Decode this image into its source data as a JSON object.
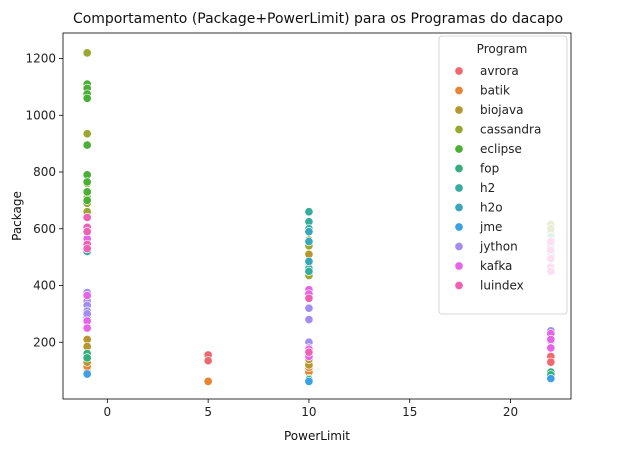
{
  "chart_data": {
    "type": "scatter",
    "title": "Comportamento (Package+PowerLimit) para os Programas do dacapo",
    "xlabel": "PowerLimit",
    "ylabel": "Package",
    "xlim": [
      -2.2,
      23.0
    ],
    "ylim": [
      0,
      1290
    ],
    "xticks": [
      0,
      5,
      10,
      15,
      20
    ],
    "yticks": [
      200,
      400,
      600,
      800,
      1000,
      1200
    ],
    "grid": false,
    "legend": {
      "title": "Program",
      "placement": "top-right"
    },
    "series": [
      {
        "name": " avrora",
        "color": "#f0686f",
        "points": [
          [
            -1,
            105
          ],
          [
            -1,
            125
          ],
          [
            -1,
            150
          ],
          [
            5,
            155
          ],
          [
            5,
            135
          ],
          [
            10,
            150
          ],
          [
            10,
            130
          ],
          [
            22,
            150
          ],
          [
            22,
            130
          ]
        ]
      },
      {
        "name": " batik",
        "color": "#e68431",
        "points": [
          [
            -1,
            95
          ],
          [
            -1,
            115
          ],
          [
            5,
            62
          ],
          [
            10,
            95
          ],
          [
            10,
            112
          ],
          [
            22,
            95
          ],
          [
            22,
            85
          ]
        ]
      },
      {
        "name": " biojava",
        "color": "#b8962f",
        "points": [
          [
            -1,
            255
          ],
          [
            -1,
            210
          ],
          [
            -1,
            185
          ],
          [
            -1,
            130
          ],
          [
            10,
            120
          ],
          [
            10,
            140
          ],
          [
            10,
            510
          ],
          [
            10,
            480
          ],
          [
            22,
            610
          ],
          [
            22,
            590
          ]
        ]
      },
      {
        "name": " cassandra",
        "color": "#9aa832",
        "points": [
          [
            -1,
            1220
          ],
          [
            -1,
            935
          ],
          [
            -1,
            760
          ],
          [
            -1,
            710
          ],
          [
            -1,
            690
          ],
          [
            -1,
            660
          ],
          [
            10,
            560
          ],
          [
            10,
            540
          ],
          [
            10,
            445
          ],
          [
            10,
            435
          ],
          [
            22,
            615
          ],
          [
            22,
            600
          ]
        ]
      },
      {
        "name": " eclipse",
        "color": "#49b035",
        "points": [
          [
            -1,
            1110
          ],
          [
            -1,
            1095
          ],
          [
            -1,
            1075
          ],
          [
            -1,
            1060
          ],
          [
            -1,
            895
          ],
          [
            -1,
            790
          ],
          [
            -1,
            765
          ],
          [
            -1,
            730
          ],
          [
            -1,
            700
          ],
          [
            10,
            72
          ],
          [
            22,
            75
          ]
        ]
      },
      {
        "name": " fop",
        "color": "#35ad7d",
        "points": [
          [
            -1,
            150
          ],
          [
            -1,
            160
          ],
          [
            -1,
            145
          ],
          [
            10,
            68
          ],
          [
            22,
            95
          ],
          [
            22,
            85
          ]
        ]
      },
      {
        "name": " h2",
        "color": "#36ac9e",
        "points": [
          [
            -1,
            535
          ],
          [
            -1,
            520
          ],
          [
            -1,
            560
          ],
          [
            10,
            660
          ],
          [
            10,
            625
          ],
          [
            10,
            600
          ],
          [
            10,
            480
          ],
          [
            10,
            460
          ],
          [
            10,
            450
          ],
          [
            22,
            570
          ],
          [
            22,
            560
          ]
        ]
      },
      {
        "name": " h2o",
        "color": "#38a7b9",
        "points": [
          [
            -1,
            305
          ],
          [
            -1,
            290
          ],
          [
            10,
            590
          ],
          [
            10,
            555
          ],
          [
            10,
            485
          ],
          [
            22,
            540
          ],
          [
            22,
            510
          ]
        ]
      },
      {
        "name": " jme",
        "color": "#3ca0e4",
        "points": [
          [
            -1,
            88
          ],
          [
            10,
            62
          ],
          [
            22,
            72
          ]
        ]
      },
      {
        "name": " jython",
        "color": "#a38df0",
        "points": [
          [
            -1,
            375
          ],
          [
            -1,
            360
          ],
          [
            -1,
            345
          ],
          [
            -1,
            330
          ],
          [
            -1,
            310
          ],
          [
            -1,
            300
          ],
          [
            10,
            320
          ],
          [
            10,
            280
          ],
          [
            10,
            200
          ],
          [
            10,
            180
          ],
          [
            22,
            240
          ],
          [
            22,
            225
          ],
          [
            22,
            215
          ],
          [
            22,
            205
          ]
        ]
      },
      {
        "name": " kafka",
        "color": "#e764ea",
        "points": [
          [
            -1,
            365
          ],
          [
            -1,
            275
          ],
          [
            -1,
            250
          ],
          [
            -1,
            565
          ],
          [
            10,
            385
          ],
          [
            10,
            370
          ],
          [
            10,
            175
          ],
          [
            10,
            160
          ],
          [
            10,
            150
          ],
          [
            22,
            230
          ],
          [
            22,
            210
          ],
          [
            22,
            180
          ]
        ]
      },
      {
        "name": " luindex",
        "color": "#f060b4",
        "points": [
          [
            -1,
            640
          ],
          [
            -1,
            605
          ],
          [
            -1,
            590
          ],
          [
            -1,
            545
          ],
          [
            -1,
            530
          ],
          [
            10,
            355
          ],
          [
            10,
            165
          ],
          [
            22,
            555
          ],
          [
            22,
            525
          ],
          [
            22,
            495
          ],
          [
            22,
            465
          ],
          [
            22,
            450
          ]
        ]
      }
    ]
  }
}
